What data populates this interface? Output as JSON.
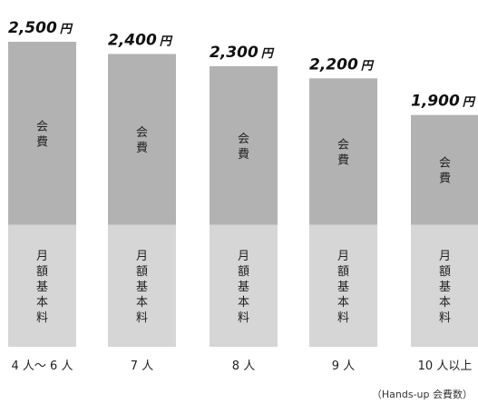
{
  "chart_data": {
    "type": "bar",
    "stacked": true,
    "categories": [
      "4 人〜 6 人",
      "7 人",
      "8 人",
      "9 人",
      "10 人以上"
    ],
    "totals": [
      2500,
      2400,
      2300,
      2200,
      1900
    ],
    "total_labels": [
      "2,500",
      "2,400",
      "2,300",
      "2,200",
      "1,900"
    ],
    "currency_label": "円",
    "series": [
      {
        "name": "月額基本料",
        "values": [
          1000,
          1000,
          1000,
          1000,
          1000
        ]
      },
      {
        "name": "会費",
        "values": [
          1500,
          1400,
          1300,
          1200,
          900
        ]
      }
    ],
    "ylim": [
      0,
      2500
    ],
    "grid": false,
    "legend": "none",
    "note": "（Hands-up 会費数）",
    "colors": {
      "base": "#d6d6d6",
      "fee": "#b2b2b2",
      "text": "#222222",
      "price": "#111111"
    }
  }
}
